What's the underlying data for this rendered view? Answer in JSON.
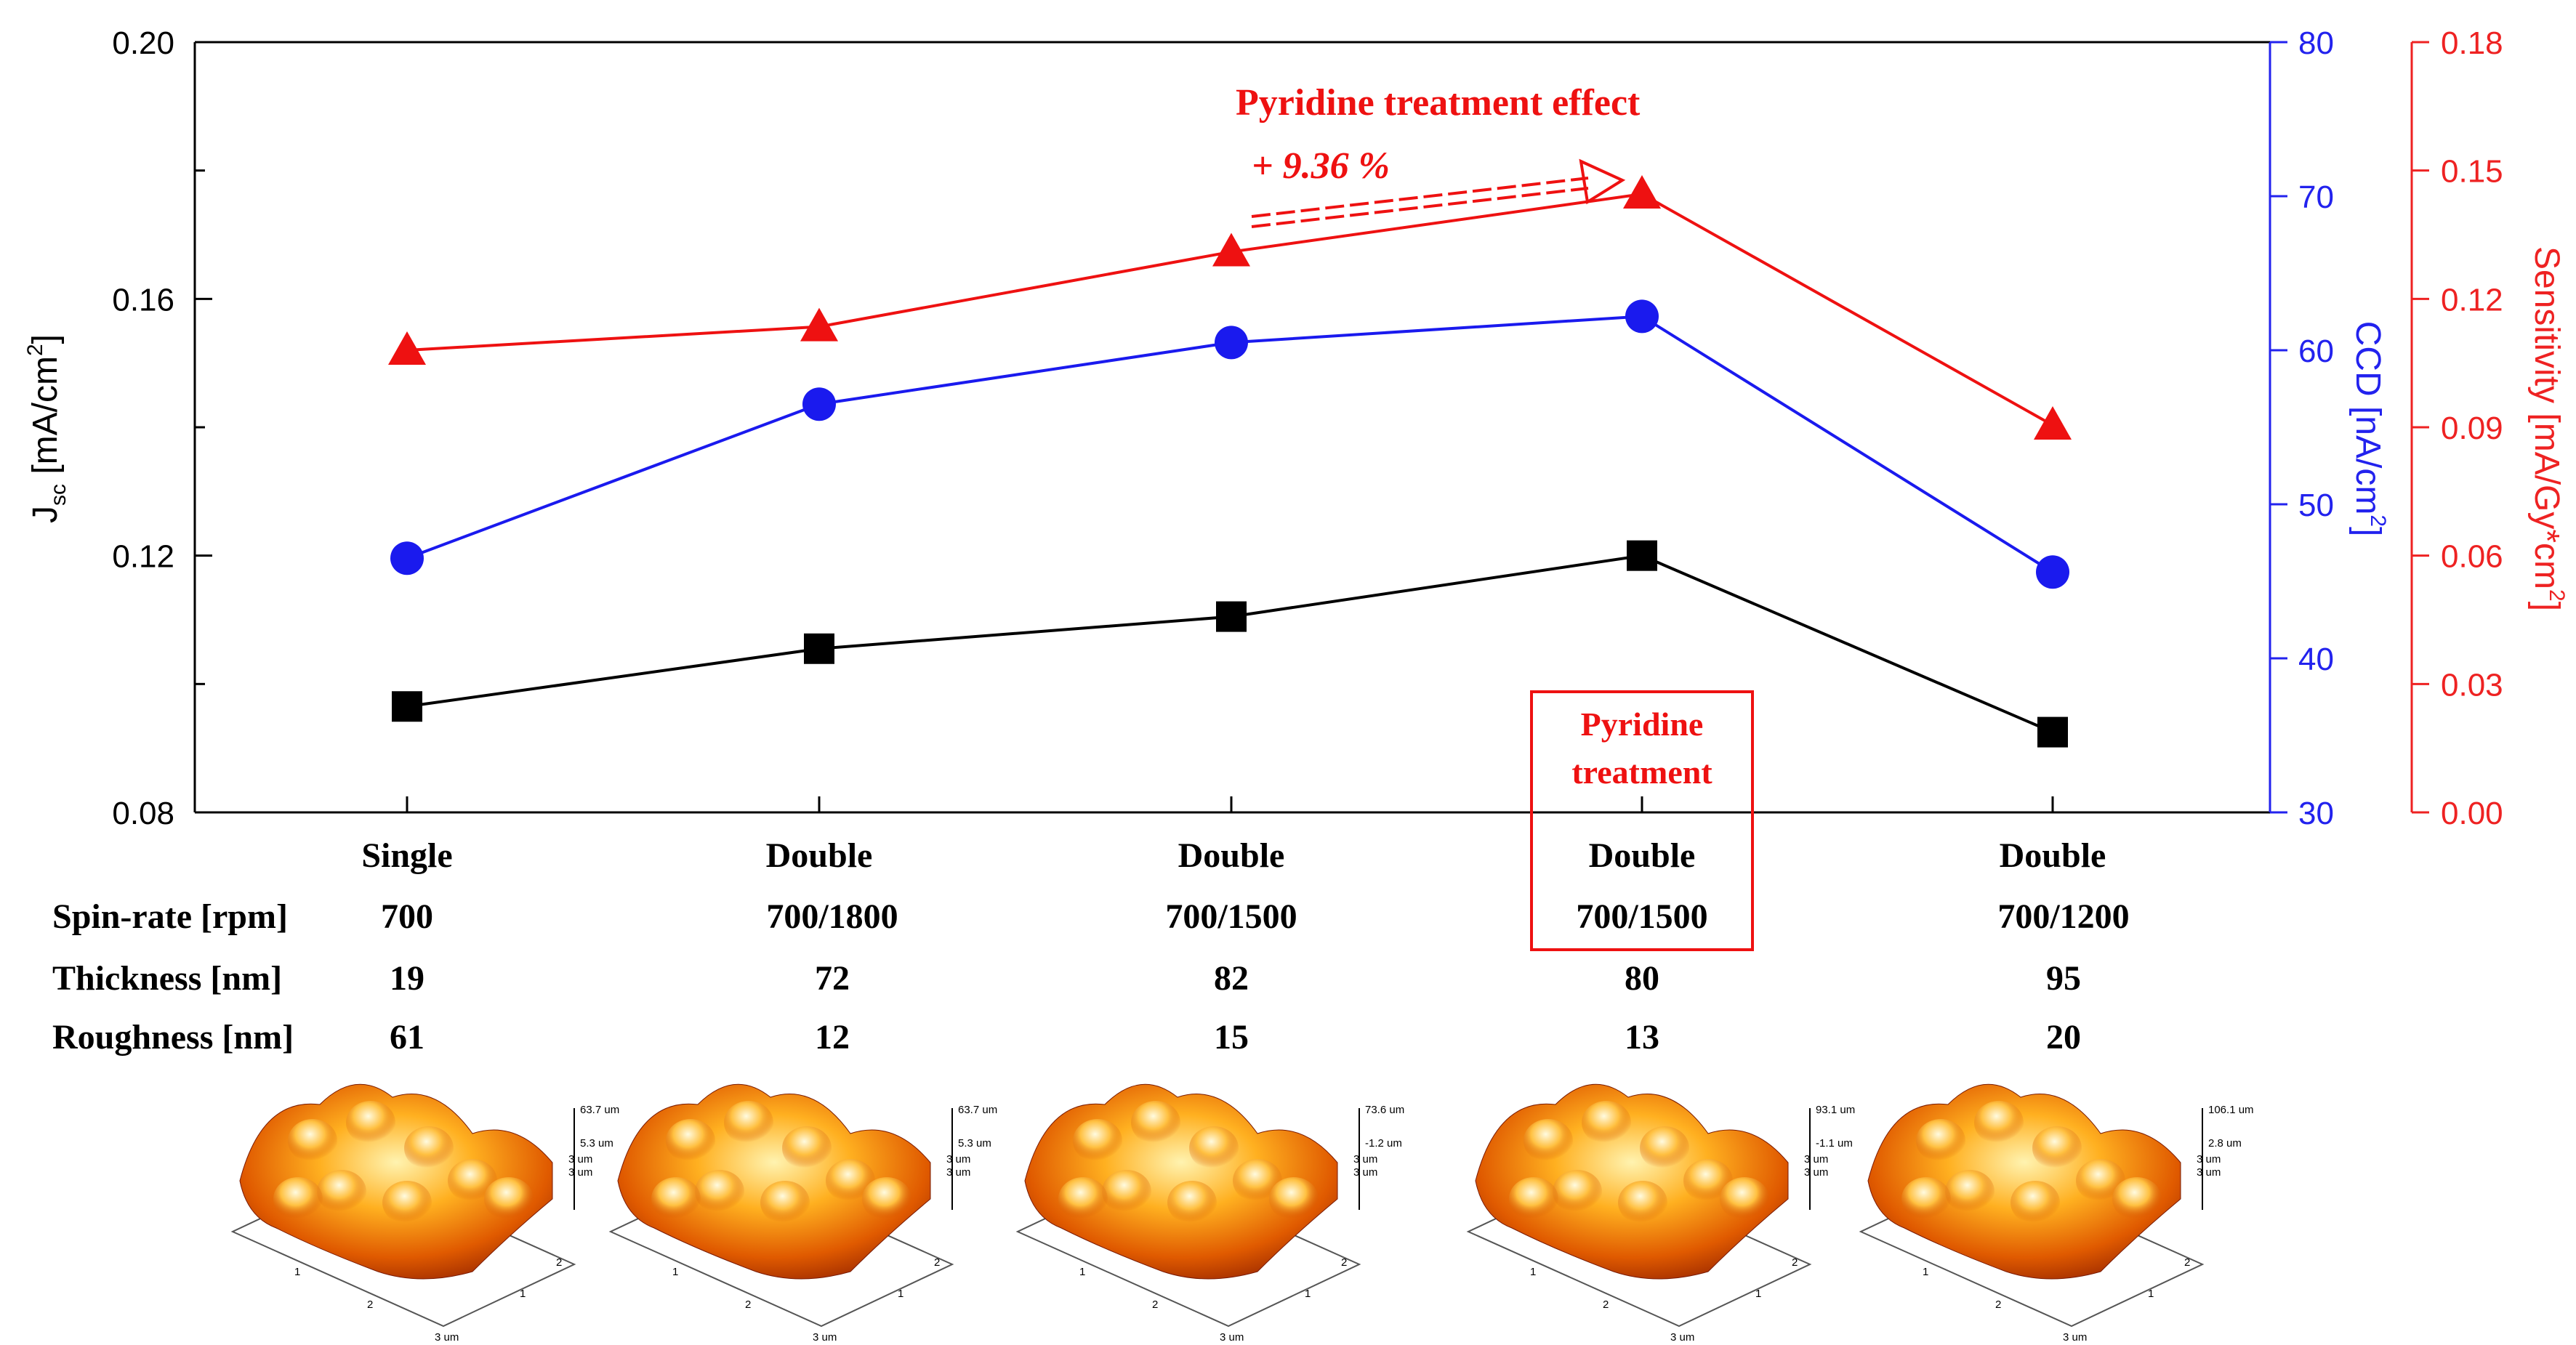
{
  "chart_data": {
    "type": "line",
    "categories": [
      "Single",
      "Double",
      "Double",
      "Double",
      "Double"
    ],
    "ylabel_left": {
      "main": "J",
      "sub": "sc",
      "rest": " [mA/cm",
      "sup": "2",
      "end": "]"
    },
    "ylabel_right1": {
      "main": "CCD [nA/cm",
      "sup": "2",
      "end": "]"
    },
    "ylabel_right2": {
      "main": "Sensitivity [mA/Gy*cm",
      "sup": "2",
      "end": "]"
    },
    "axes": {
      "left": {
        "min": 0.08,
        "max": 0.2,
        "ticks": [
          "0.08",
          "0.12",
          "0.16",
          "0.20"
        ],
        "color": "#000000"
      },
      "right1": {
        "min": 30,
        "max": 80,
        "ticks": [
          "30",
          "40",
          "50",
          "60",
          "70",
          "80"
        ],
        "color": "#2222ee"
      },
      "right2": {
        "min": 0,
        "max": 0.18,
        "ticks": [
          "0.00",
          "0.03",
          "0.06",
          "0.09",
          "0.12",
          "0.15",
          "0.18"
        ],
        "color": "#ee2222"
      }
    },
    "series": [
      {
        "name": "Jsc",
        "axis": "left",
        "marker": "square",
        "color": "#000000",
        "values": [
          0.0965,
          0.1055,
          0.1105,
          0.12,
          0.0925
        ]
      },
      {
        "name": "CCD",
        "axis": "right1",
        "marker": "circle",
        "color": "#1a1aee",
        "values": [
          46.5,
          56.5,
          60.5,
          62.2,
          45.6
        ]
      },
      {
        "name": "Sensitivity",
        "axis": "right2",
        "marker": "triangle",
        "color": "#ee1111",
        "values": [
          0.108,
          0.1135,
          0.131,
          0.1445,
          0.0905
        ]
      }
    ],
    "annotation": {
      "title": "Pyridine treatment effect",
      "value": "+ 9.36 %"
    },
    "highlight": {
      "label_line1": "Pyridine",
      "label_line2": "treatment",
      "index": 3
    }
  },
  "table": {
    "labels": [
      "Spin-rate [rpm]",
      "Thickness [nm]",
      "Roughness [nm]"
    ],
    "spin_rate": [
      "700",
      "700/1800",
      "700/1500",
      "700/1500",
      "700/1200"
    ],
    "thickness": [
      "19",
      "72",
      "82",
      "80",
      "95"
    ],
    "roughness": [
      "61",
      "12",
      "15",
      "13",
      "20"
    ]
  },
  "afm": [
    {
      "top": "63.7 um",
      "mid": "5.3 um",
      "c1": "3 um",
      "c2": "3 um",
      "x1": "1",
      "x2": "2",
      "x3": "3 um",
      "y1": "1",
      "y2": "2"
    },
    {
      "top": "63.7 um",
      "mid": "5.3 um",
      "c1": "3 um",
      "c2": "3 um",
      "x1": "1",
      "x2": "2",
      "x3": "3 um",
      "y1": "1",
      "y2": "2"
    },
    {
      "top": "73.6 um",
      "mid": "-1.2 um",
      "c1": "3 um",
      "c2": "3 um",
      "x1": "1",
      "x2": "2",
      "x3": "3 um",
      "y1": "1",
      "y2": "2"
    },
    {
      "top": "93.1 um",
      "mid": "-1.1 um",
      "c1": "3 um",
      "c2": "3 um",
      "x1": "1",
      "x2": "2",
      "x3": "3 um",
      "y1": "1",
      "y2": "2"
    },
    {
      "top": "106.1 um",
      "mid": "2.8 um",
      "c1": "3 um",
      "c2": "3 um",
      "x1": "1",
      "x2": "2",
      "x3": "3 um",
      "y1": "1",
      "y2": "2"
    }
  ]
}
